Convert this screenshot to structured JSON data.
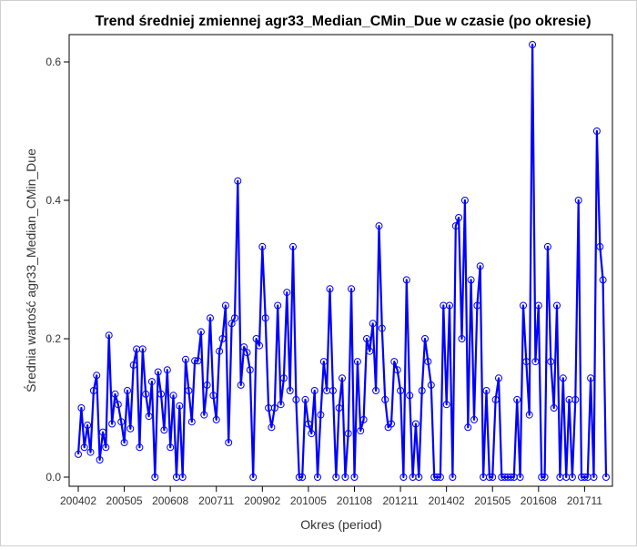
{
  "chart_data": {
    "type": "line",
    "title": "Trend średniej zmiennej agr33_Median_CMin_Due w czasie (po okresie)",
    "xlabel": "Okres (period)",
    "ylabel": "Średnia wartość agr33_Median_CMin_Due",
    "x_tick_labels": [
      "200402",
      "200505",
      "200608",
      "200711",
      "200902",
      "201005",
      "201108",
      "201211",
      "201402",
      "201505",
      "201608",
      "201711"
    ],
    "y_tick_labels": [
      "0.0",
      "0.2",
      "0.4",
      "0.6"
    ],
    "y_ticks": [
      0.0,
      0.2,
      0.4,
      0.6
    ],
    "ylim": [
      -0.02,
      0.64
    ],
    "grid": false,
    "legend": "none",
    "line_color": "#0000ff",
    "series": [
      {
        "values": [
          0.033,
          0.1,
          0.043,
          0.075,
          0.036,
          0.125,
          0.147,
          0.025,
          0.065,
          0.043,
          0.205,
          0.077,
          0.12,
          0.105,
          0.08,
          0.05,
          0.125,
          0.07,
          0.162,
          0.185,
          0.043,
          0.185,
          0.12,
          0.088,
          0.138,
          0.0,
          0.152,
          0.12,
          0.068,
          0.155,
          0.043,
          0.118,
          0.0,
          0.103,
          0.0,
          0.17,
          0.125,
          0.08,
          0.168,
          0.168,
          0.21,
          0.09,
          0.133,
          0.23,
          0.118,
          0.083,
          0.182,
          0.2,
          0.248,
          0.05,
          0.222,
          0.23,
          0.428,
          0.133,
          0.188,
          0.18,
          0.155,
          0.0,
          0.2,
          0.19,
          0.333,
          0.23,
          0.1,
          0.072,
          0.1,
          0.248,
          0.105,
          0.143,
          0.267,
          0.125,
          0.333,
          0.112,
          0.0,
          0.0,
          0.112,
          0.077,
          0.063,
          0.125,
          0.0,
          0.09,
          0.167,
          0.125,
          0.272,
          0.125,
          0.0,
          0.1,
          0.143,
          0.0,
          0.063,
          0.272,
          0.0,
          0.167,
          0.067,
          0.083,
          0.2,
          0.182,
          0.222,
          0.125,
          0.363,
          0.215,
          0.112,
          0.072,
          0.077,
          0.167,
          0.155,
          0.125,
          0.0,
          0.285,
          0.118,
          0.0,
          0.077,
          0.0,
          0.125,
          0.2,
          0.167,
          0.133,
          0.0,
          0.0,
          0.0,
          0.248,
          0.105,
          0.248,
          0.0,
          0.363,
          0.375,
          0.2,
          0.4,
          0.072,
          0.285,
          0.083,
          0.248,
          0.305,
          0.0,
          0.125,
          0.0,
          0.0,
          0.112,
          0.143,
          0.0,
          0.0,
          0.0,
          0.0,
          0.0,
          0.112,
          0.0,
          0.248,
          0.167,
          0.09,
          0.625,
          0.167,
          0.248,
          0.0,
          0.0,
          0.333,
          0.167,
          0.1,
          0.248,
          0.0,
          0.143,
          0.0,
          0.112,
          0.0,
          0.112,
          0.4,
          0.0,
          0.0,
          0.0,
          0.143,
          0.0,
          0.5,
          0.333,
          0.285,
          0.0
        ]
      }
    ]
  }
}
